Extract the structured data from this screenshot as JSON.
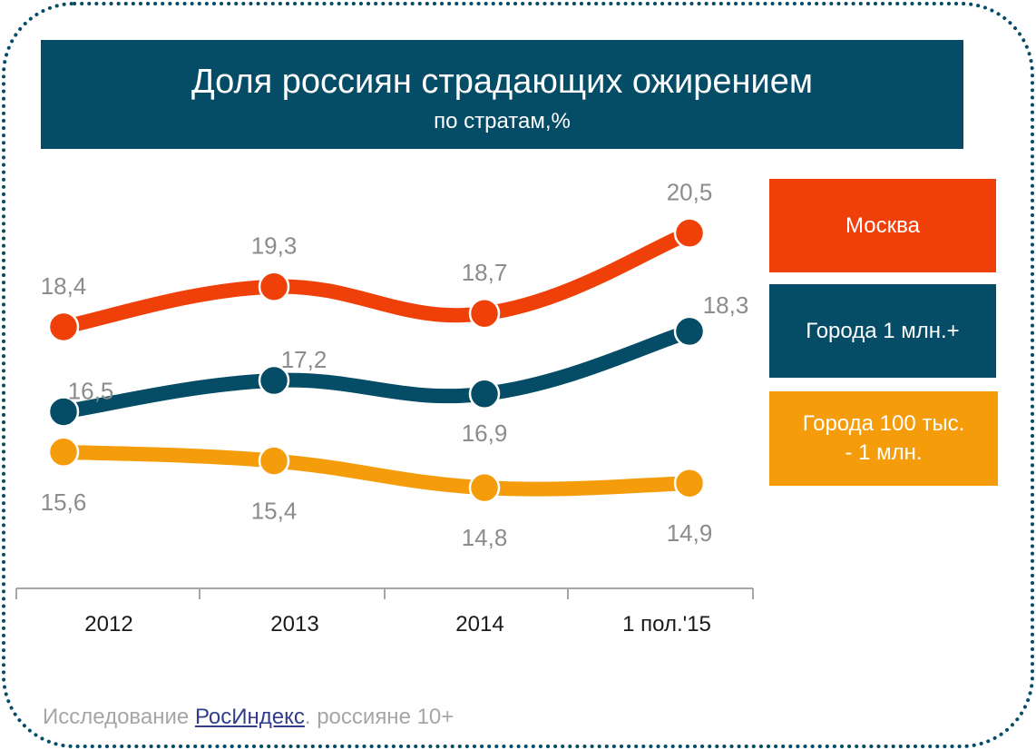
{
  "title": "Доля россиян страдающих ожирением",
  "subtitle": "по стратам,%",
  "source": {
    "prefix": "Исследование ",
    "link": "РосИндекс",
    "suffix": ". россияне 10+"
  },
  "chart_data": {
    "type": "line",
    "categories": [
      "2012",
      "2013",
      "2014",
      "1 пол.'15"
    ],
    "series": [
      {
        "name": "Москва",
        "color": "#f0400a",
        "values": [
          18.4,
          19.3,
          18.7,
          20.5
        ],
        "labels": [
          "18,4",
          "19,3",
          "18,7",
          "20,5"
        ]
      },
      {
        "name": "Города 1 млн.+",
        "color": "#054c67",
        "values": [
          16.5,
          17.2,
          16.9,
          18.3
        ],
        "labels": [
          "16,5",
          "17,2",
          "16,9",
          "18,3"
        ]
      },
      {
        "name": "Города 100 тыс. - 1 млн.",
        "color": "#f49c0a",
        "values": [
          15.6,
          15.4,
          14.8,
          14.9
        ],
        "labels": [
          "15,6",
          "15,4",
          "14,8",
          "14,9"
        ]
      }
    ],
    "legend": [
      {
        "line1": "Москва",
        "line2": ""
      },
      {
        "line1": "Города 1 млн.+",
        "line2": ""
      },
      {
        "line1": "Города 100 тыс.",
        "line2": "-  1 млн."
      }
    ],
    "legend_position": "right",
    "grid": false,
    "colors": {
      "label": "#8c8c8c",
      "axis": "#a6a6a6",
      "tick_label": "#1a1a1a",
      "frame": "#054c67"
    }
  }
}
